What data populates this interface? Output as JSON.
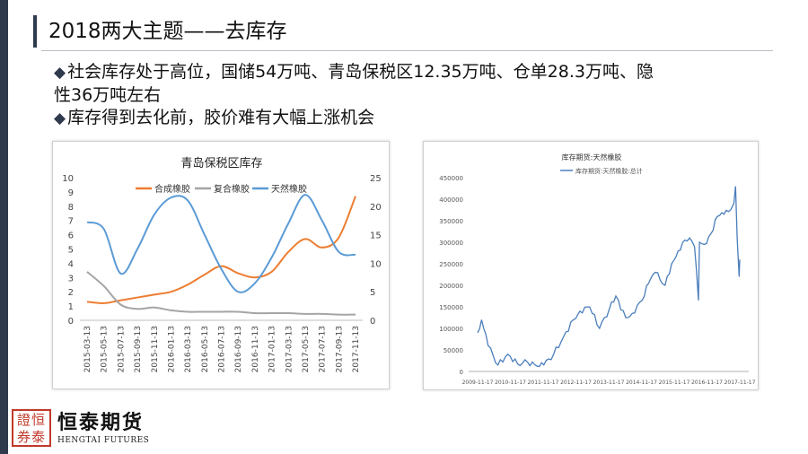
{
  "slide": {
    "title": "2018两大主题——去库存",
    "bullets": [
      "社会库存处于高位，国储54万吨、青岛保税区12.35万吨、仓单28.3万吨、隐",
      "性36万吨左右",
      "库存得到去化前，胶价难有大幅上涨机会"
    ],
    "bullet_lines_with_marker": [
      true,
      false,
      true
    ],
    "logo": {
      "seal": "證恒券泰",
      "name": "恒泰期货",
      "english": "HENGTAI FUTURES"
    },
    "colors": {
      "accent": "#2f3a4c",
      "logo_red": "#c0392b"
    }
  },
  "chart_data": [
    {
      "type": "line",
      "title": "青岛保税区库存",
      "x": [
        "2015-03-13",
        "2015-05-13",
        "2015-07-13",
        "2015-09-13",
        "2015-11-13",
        "2016-01-13",
        "2016-03-13",
        "2016-05-13",
        "2016-07-13",
        "2016-09-13",
        "2016-11-13",
        "2017-01-13",
        "2017-03-13",
        "2017-05-13",
        "2017-07-13",
        "2017-09-13",
        "2017-11-13"
      ],
      "ylim_left": [
        0,
        10
      ],
      "yticks_left": [
        "0",
        "1",
        "2",
        "3",
        "4",
        "5",
        "6",
        "7",
        "8",
        "9",
        "10"
      ],
      "ylim_right": [
        0,
        25
      ],
      "yticks_right": [
        "0",
        "5",
        "10",
        "15",
        "20",
        "25"
      ],
      "legend_position": "top",
      "series": [
        {
          "name": "合成橡胶",
          "axis": "left",
          "color": "#ed7d31",
          "values": [
            1.3,
            1.2,
            1.4,
            1.6,
            1.8,
            2.0,
            2.5,
            3.2,
            3.8,
            3.3,
            3.0,
            3.4,
            4.8,
            5.7,
            5.1,
            5.8,
            8.7
          ]
        },
        {
          "name": "复合橡胶",
          "axis": "left",
          "color": "#a5a5a5",
          "values": [
            3.4,
            2.4,
            1.1,
            0.8,
            0.9,
            0.7,
            0.6,
            0.6,
            0.6,
            0.6,
            0.5,
            0.5,
            0.5,
            0.45,
            0.45,
            0.4,
            0.4
          ]
        },
        {
          "name": "天然橡胶",
          "axis": "right",
          "color": "#5b9bd5",
          "values": [
            17.2,
            16.0,
            8.2,
            12.5,
            18.5,
            21.5,
            21.0,
            15.0,
            9.0,
            5.0,
            6.5,
            11.0,
            17.0,
            22.0,
            17.5,
            12.0,
            11.5
          ]
        }
      ]
    },
    {
      "type": "line",
      "title": "库存期货:天然橡胶",
      "legend": "库存期货:天然橡胶:总计",
      "legend_position": "top-left",
      "x": [
        "2009-11-17",
        "2010-11-17",
        "2011-11-17",
        "2012-11-17",
        "2013-11-17",
        "2014-11-17",
        "2015-11-17",
        "2016-11-17",
        "2017-11-17"
      ],
      "ylim": [
        0,
        450000
      ],
      "yticks": [
        "0",
        "50000",
        "100000",
        "150000",
        "200000",
        "250000",
        "300000",
        "350000",
        "400000",
        "450000"
      ],
      "series": [
        {
          "name": "库存期货:天然橡胶:总计",
          "color": "#4a7ebb",
          "x": [
            2009.88,
            2010.0,
            2010.2,
            2010.5,
            2010.8,
            2011.1,
            2011.4,
            2011.7,
            2011.9,
            2012.2,
            2012.5,
            2012.8,
            2013.0,
            2013.3,
            2013.6,
            2013.9,
            2014.1,
            2014.4,
            2014.6,
            2014.9,
            2015.1,
            2015.3,
            2015.6,
            2015.8,
            2016.0,
            2016.2,
            2016.35,
            2016.5,
            2016.62,
            2016.65,
            2016.8,
            2017.0,
            2017.2,
            2017.4,
            2017.6,
            2017.7,
            2017.75,
            2017.8,
            2017.86,
            2017.88
          ],
          "values": [
            90000,
            120000,
            60000,
            15000,
            40000,
            18000,
            22000,
            12000,
            15000,
            40000,
            80000,
            120000,
            140000,
            150000,
            100000,
            145000,
            175000,
            125000,
            135000,
            165000,
            205000,
            230000,
            200000,
            250000,
            280000,
            305000,
            310000,
            290000,
            165000,
            300000,
            295000,
            320000,
            360000,
            365000,
            375000,
            390000,
            430000,
            310000,
            220000,
            260000
          ]
        }
      ]
    }
  ]
}
